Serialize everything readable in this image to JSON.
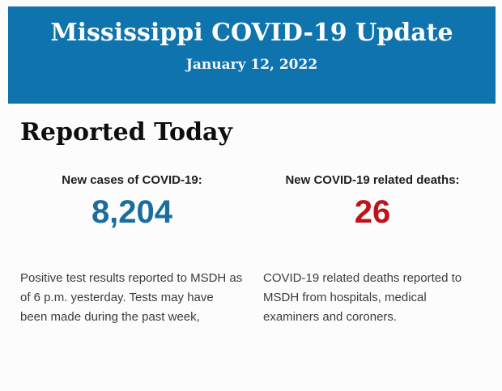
{
  "header": {
    "title": "Mississippi COVID-19 Update",
    "date": "January 12, 2022",
    "background_color": "#0f73ad",
    "text_color": "#fbfdfe"
  },
  "section": {
    "heading": "Reported Today"
  },
  "stats": {
    "cases": {
      "label": "New cases of COVID-19:",
      "value": "8,204",
      "value_color": "#1b6d9e",
      "description": "Positive test results reported to MSDH as of 6 p.m. yesterday. Tests may have been made during the past week,"
    },
    "deaths": {
      "label": "New COVID-19 related deaths:",
      "value": "26",
      "value_color": "#c1121a",
      "description": "COVID-19 related deaths reported to MSDH from hospitals, medical examiners and coroners."
    }
  }
}
